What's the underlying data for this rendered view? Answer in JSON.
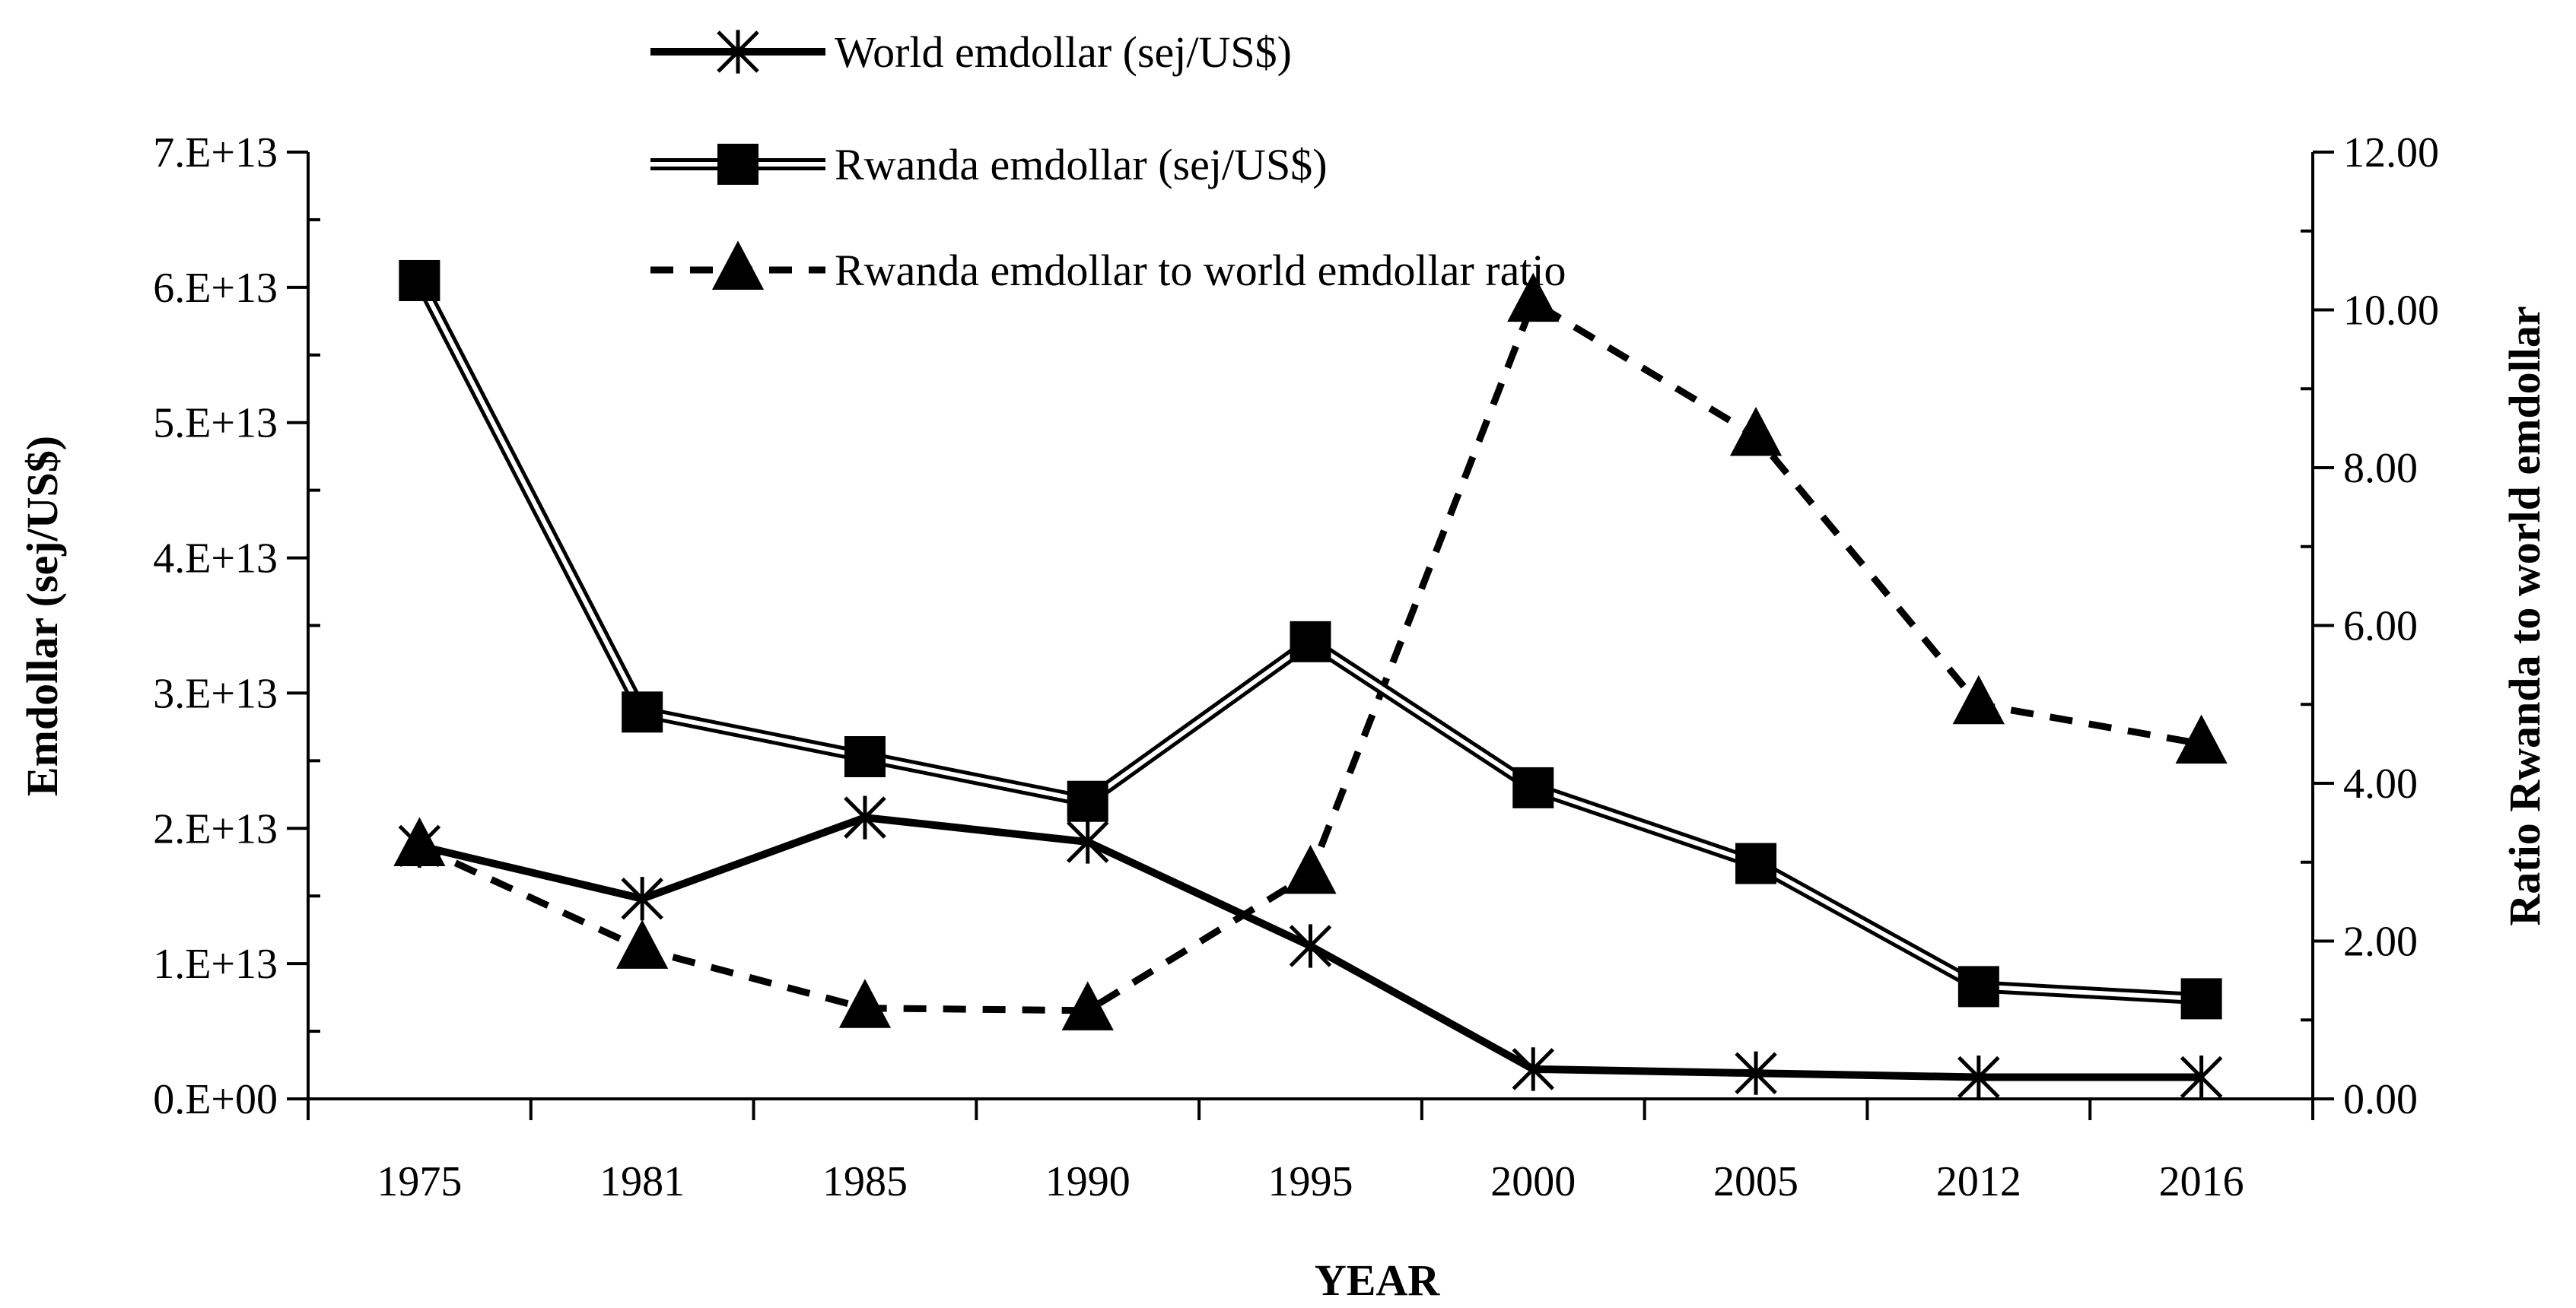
{
  "chart_data": {
    "type": "line",
    "title": "",
    "categories": [
      "1975",
      "1981",
      "1985",
      "1990",
      "1995",
      "2000",
      "2005",
      "2012",
      "2016"
    ],
    "xlabel": "YEAR",
    "ylabel": "Emdollar (sej/US$)",
    "y2label": "Ratio Rwanda to world emdollar",
    "ylim": [
      0,
      70000000000000.0
    ],
    "y2lim": [
      0,
      12
    ],
    "yticks": [
      "0.E+00",
      "1.E+13",
      "2.E+13",
      "3.E+13",
      "4.E+13",
      "5.E+13",
      "6.E+13",
      "7.E+13"
    ],
    "y2ticks": [
      "0.00",
      "2.00",
      "4.00",
      "6.00",
      "8.00",
      "10.00",
      "12.00"
    ],
    "legend_position": "top-center",
    "series": [
      {
        "name": "World emdollar (sej/US$)",
        "axis": "left",
        "style": "solid-thick",
        "marker": "asterisk",
        "values": [
          18700000000000.0,
          14800000000000.0,
          20800000000000.0,
          19000000000000.0,
          11300000000000.0,
          2200000000000.0,
          1900000000000.0,
          1600000000000.0,
          1600000000000.0
        ]
      },
      {
        "name": "Rwanda emdollar (sej/US$)",
        "axis": "left",
        "style": "double",
        "marker": "square",
        "values": [
          60500000000000.0,
          28600000000000.0,
          25300000000000.0,
          22000000000000.0,
          33800000000000.0,
          23000000000000.0,
          17400000000000.0,
          8300000000000.0,
          7400000000000.0
        ]
      },
      {
        "name": "Rwanda emdollar to world emdollar ratio",
        "axis": "right",
        "style": "dashed",
        "marker": "triangle",
        "values": [
          3.2,
          1.9,
          1.15,
          1.12,
          2.85,
          10.1,
          8.4,
          5.0,
          4.5
        ]
      }
    ],
    "colors": {
      "line": "#000000",
      "background": "#ffffff"
    }
  }
}
